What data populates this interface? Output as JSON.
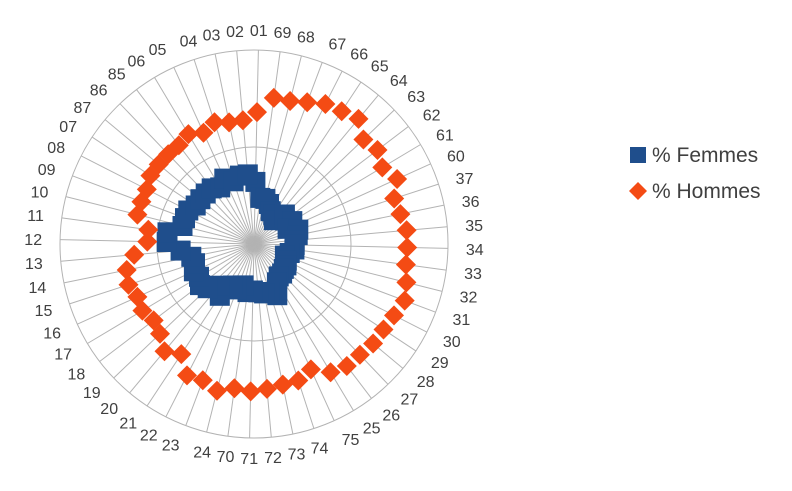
{
  "chart_data": {
    "type": "radar",
    "categories": [
      "01",
      "69",
      "68",
      "67",
      "66",
      "65",
      "64",
      "63",
      "62",
      "61",
      "60",
      "37",
      "36",
      "35",
      "34",
      "33",
      "32",
      "31",
      "30",
      "29",
      "28",
      "27",
      "26",
      "25",
      "75",
      "74",
      "73",
      "72",
      "71",
      "70",
      "24",
      "23",
      "22",
      "21",
      "20",
      "19",
      "18",
      "17",
      "16",
      "15",
      "14",
      "13",
      "12",
      "11",
      "10",
      "09",
      "08",
      "07",
      "87",
      "86",
      "85",
      "06",
      "05",
      "04",
      "03",
      "02"
    ],
    "series": [
      {
        "name": "% Femmes",
        "color": "#1f4e8c",
        "marker": "square",
        "values": [
          32,
          24,
          24,
          22,
          19,
          18,
          16,
          22,
          20,
          23,
          19,
          24,
          23,
          21,
          21,
          21,
          19,
          17,
          19,
          20,
          20,
          21,
          21,
          23,
          29,
          26,
          26,
          25,
          24,
          25,
          22,
          25,
          24,
          32,
          28,
          33,
          35,
          33,
          34,
          32,
          33,
          38,
          45,
          45,
          38,
          38,
          38,
          36,
          36,
          36,
          36,
          34,
          37,
          34,
          36,
          36
        ]
      },
      {
        "name": "% Hommes",
        "color": "#f44b14",
        "marker": "diamond",
        "values": [
          68,
          76,
          76,
          78,
          81,
          82,
          84,
          78,
          80,
          77,
          81,
          76,
          77,
          79,
          79,
          79,
          81,
          83,
          81,
          80,
          80,
          79,
          79,
          77,
          71,
          74,
          74,
          75,
          76,
          75,
          78,
          75,
          76,
          68,
          72,
          67,
          65,
          67,
          66,
          68,
          67,
          62,
          55,
          55,
          62,
          62,
          62,
          64,
          64,
          64,
          64,
          66,
          63,
          66,
          64,
          64
        ]
      }
    ],
    "rmax": 100,
    "rings": [
      50,
      100
    ],
    "grid": true,
    "legend_position": "right"
  }
}
